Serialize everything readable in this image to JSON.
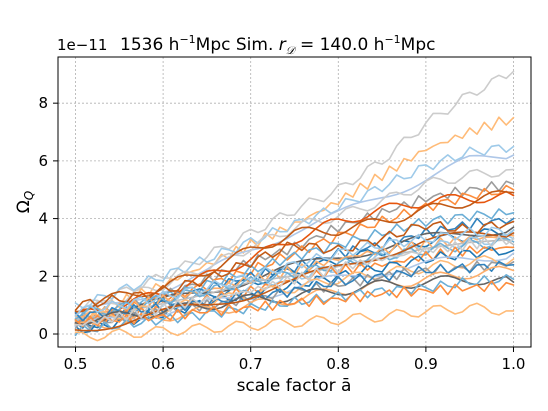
{
  "chart_data": {
    "type": "line",
    "title": "1536 h$^{-1}$Mpc Sim. $r_D = 140.0$ h$^{-1}$Mpc",
    "title_parts": {
      "prefix": "1536 h",
      "exp1": "−1",
      "middle": "Mpc Sim. ",
      "r_symbol": "r",
      "r_subscript": "𝒟",
      "equals": " = 140.0 h",
      "exp2": "−1",
      "suffix": "Mpc"
    },
    "xlabel": "scale factor ā",
    "ylabel": "Ω",
    "ylabel_subscript": "Q",
    "y_offset_text": "1e−11",
    "y_scale_factor": 1e-11,
    "xlim": [
      0.48,
      1.02
    ],
    "ylim": [
      -0.45,
      9.6
    ],
    "x_ticks": [
      0.5,
      0.6,
      0.7,
      0.8,
      0.9,
      1.0
    ],
    "x_tick_labels": [
      "0.5",
      "0.6",
      "0.7",
      "0.8",
      "0.9",
      "1.0"
    ],
    "y_ticks": [
      0,
      2,
      4,
      6,
      8
    ],
    "y_tick_labels": [
      "0",
      "2",
      "4",
      "6",
      "8"
    ],
    "grid": true,
    "x": [
      0.5,
      0.55,
      0.6,
      0.65,
      0.7,
      0.75,
      0.8,
      0.85,
      0.9,
      0.95,
      1.0
    ],
    "series": [
      {
        "color": "#cccccc",
        "values": [
          0.8,
          1.4,
          2.0,
          2.7,
          3.5,
          4.3,
          5.0,
          6.0,
          7.3,
          8.3,
          9.1
        ]
      },
      {
        "color": "#ffbb78",
        "values": [
          0.5,
          1.1,
          1.7,
          2.4,
          3.1,
          3.8,
          4.6,
          5.5,
          6.4,
          7.0,
          7.5
        ]
      },
      {
        "color": "#9ecae9",
        "values": [
          0.9,
          1.5,
          2.0,
          2.6,
          3.2,
          3.8,
          4.4,
          5.1,
          5.8,
          6.3,
          6.5
        ]
      },
      {
        "color": "#aec7e8",
        "values": [
          0.6,
          1.0,
          1.6,
          2.1,
          2.9,
          3.6,
          4.1,
          4.8,
          5.4,
          6.0,
          6.2
        ]
      },
      {
        "color": "#cccccc",
        "values": [
          0.7,
          1.2,
          1.7,
          2.3,
          3.0,
          3.7,
          4.1,
          4.6,
          5.2,
          5.5,
          5.7
        ]
      },
      {
        "color": "#9c9c9c",
        "values": [
          0.4,
          0.9,
          1.3,
          1.9,
          2.5,
          3.0,
          3.7,
          4.2,
          4.7,
          5.0,
          5.2
        ]
      },
      {
        "color": "#fd8d3c",
        "values": [
          0.3,
          0.8,
          1.2,
          1.7,
          2.2,
          2.8,
          3.4,
          3.9,
          4.4,
          4.8,
          5.0
        ]
      },
      {
        "color": "#e6550d",
        "values": [
          0.6,
          1.0,
          1.4,
          2.0,
          2.6,
          3.3,
          3.9,
          4.3,
          4.6,
          4.7,
          4.8
        ]
      },
      {
        "color": "#c25a16",
        "values": [
          0.9,
          1.3,
          1.6,
          2.2,
          2.9,
          3.5,
          3.6,
          3.9,
          4.3,
          4.6,
          4.9
        ]
      },
      {
        "color": "#6baed6",
        "values": [
          0.5,
          0.9,
          1.3,
          1.7,
          2.2,
          2.7,
          3.1,
          3.5,
          3.9,
          4.1,
          4.2
        ]
      },
      {
        "color": "#3182bd",
        "values": [
          0.3,
          0.7,
          1.1,
          1.6,
          2.0,
          2.3,
          2.8,
          3.1,
          3.5,
          3.8,
          4.0
        ]
      },
      {
        "color": "#1f77b4",
        "values": [
          0.2,
          0.6,
          1.0,
          1.3,
          1.8,
          2.2,
          2.5,
          2.9,
          3.2,
          3.4,
          3.6
        ]
      },
      {
        "color": "#636363",
        "values": [
          0.4,
          0.8,
          1.1,
          1.5,
          1.9,
          2.3,
          2.7,
          3.0,
          3.3,
          3.5,
          3.7
        ]
      },
      {
        "color": "#c25a16",
        "values": [
          1.0,
          1.2,
          1.5,
          1.9,
          2.5,
          3.1,
          2.9,
          3.3,
          3.8,
          3.6,
          3.9
        ]
      },
      {
        "color": "#fdae6b",
        "values": [
          0.6,
          0.9,
          1.2,
          1.5,
          1.9,
          2.2,
          2.6,
          2.9,
          3.1,
          3.3,
          3.4
        ]
      },
      {
        "color": "#9ecae9",
        "values": [
          0.3,
          0.6,
          0.9,
          1.3,
          1.7,
          2.0,
          2.3,
          2.7,
          3.0,
          3.2,
          3.3
        ]
      },
      {
        "color": "#bdbdbd",
        "values": [
          0.5,
          0.7,
          1.0,
          1.3,
          1.7,
          1.9,
          2.2,
          2.5,
          2.8,
          3.0,
          3.1
        ]
      },
      {
        "color": "#6baed6",
        "values": [
          0.7,
          0.9,
          1.2,
          1.5,
          1.8,
          2.1,
          2.4,
          2.7,
          2.9,
          3.1,
          3.2
        ]
      },
      {
        "color": "#fd8d3c",
        "values": [
          0.4,
          0.6,
          0.9,
          1.2,
          1.5,
          1.9,
          2.2,
          2.4,
          2.7,
          2.9,
          3.0
        ]
      },
      {
        "color": "#1f77b4",
        "values": [
          0.1,
          0.4,
          0.7,
          1.1,
          1.4,
          1.7,
          2.0,
          2.3,
          2.6,
          2.8,
          2.9
        ]
      },
      {
        "color": "#aec7e8",
        "values": [
          0.2,
          0.5,
          0.8,
          1.0,
          1.3,
          1.6,
          1.9,
          2.2,
          2.4,
          2.6,
          2.8
        ]
      },
      {
        "color": "#ffbb78",
        "values": [
          0.5,
          0.7,
          0.9,
          1.1,
          1.4,
          1.6,
          1.9,
          2.1,
          2.3,
          2.5,
          2.6
        ]
      },
      {
        "color": "#9c9c9c",
        "values": [
          0.3,
          0.5,
          0.8,
          1.0,
          1.2,
          1.5,
          1.7,
          2.0,
          2.2,
          2.3,
          2.5
        ]
      },
      {
        "color": "#3182bd",
        "values": [
          0.6,
          0.8,
          0.9,
          1.1,
          1.3,
          1.5,
          1.8,
          2.0,
          2.2,
          2.3,
          2.4
        ]
      },
      {
        "color": "#fdae6b",
        "values": [
          0.2,
          0.4,
          0.6,
          0.8,
          1.0,
          1.2,
          1.5,
          1.7,
          1.9,
          2.1,
          2.2
        ]
      },
      {
        "color": "#636363",
        "values": [
          0.5,
          0.6,
          0.8,
          1.0,
          1.2,
          1.3,
          1.5,
          1.7,
          1.8,
          1.9,
          1.8
        ]
      },
      {
        "color": "#6baed6",
        "values": [
          0.1,
          0.3,
          0.5,
          0.7,
          0.9,
          1.1,
          1.3,
          1.5,
          1.6,
          1.8,
          1.9
        ]
      },
      {
        "color": "#fd8d3c",
        "values": [
          0.4,
          0.5,
          0.6,
          0.8,
          0.9,
          1.1,
          1.2,
          1.4,
          1.5,
          1.6,
          1.7
        ]
      },
      {
        "color": "#ffbb78",
        "values": [
          -0.1,
          0.0,
          0.1,
          0.2,
          0.3,
          0.4,
          0.5,
          0.6,
          0.8,
          0.9,
          0.8
        ]
      },
      {
        "color": "#c25a16",
        "values": [
          0.2,
          0.4,
          0.7,
          1.0,
          1.4,
          1.8,
          2.3,
          2.8,
          3.2,
          3.4,
          3.5
        ]
      },
      {
        "color": "#9ecae9",
        "values": [
          0.8,
          1.0,
          1.3,
          1.6,
          2.0,
          2.4,
          2.8,
          3.1,
          3.3,
          3.5,
          3.6
        ]
      },
      {
        "color": "#cccccc",
        "values": [
          0.3,
          0.6,
          0.9,
          1.2,
          1.5,
          1.9,
          2.3,
          2.6,
          2.9,
          3.1,
          3.3
        ]
      }
    ]
  }
}
